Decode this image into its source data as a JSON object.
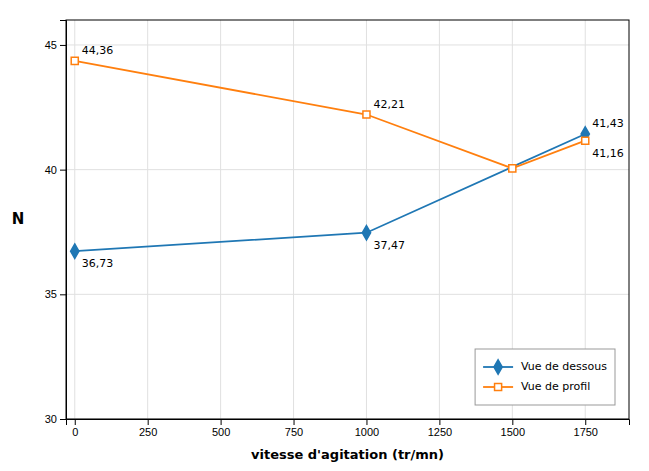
{
  "chart_data": {
    "type": "line",
    "x_label": "vitesse d'agitation (tr/mn)",
    "y_label": "N",
    "series": [
      {
        "name": "Vue de dessous",
        "x": [
          0,
          1000,
          1750
        ],
        "values": [
          36.73,
          37.47,
          41.43
        ],
        "marker": "diamond"
      },
      {
        "name": "Vue de profil",
        "x": [
          0,
          1000,
          1500,
          1750
        ],
        "values": [
          44.36,
          42.21,
          40.05,
          41.16
        ],
        "marker": "square"
      }
    ],
    "annotations": [
      {
        "text": "44,36",
        "x": 0,
        "y": 44.36
      },
      {
        "text": "36,73",
        "x": 0,
        "y": 36.73
      },
      {
        "text": "42,21",
        "x": 1000,
        "y": 42.21
      },
      {
        "text": "37,47",
        "x": 1000,
        "y": 37.47
      },
      {
        "text": "41,43",
        "x": 1750,
        "y": 41.43
      },
      {
        "text": "41,16",
        "x": 1750,
        "y": 41.16
      }
    ],
    "xlim": [
      -30,
      1900
    ],
    "ylim": [
      30,
      46
    ],
    "xticks": [
      0,
      250,
      500,
      750,
      1000,
      1250,
      1500,
      1750
    ],
    "yticks": [
      30,
      35,
      40,
      45
    ],
    "grid": true,
    "legend": "lower right"
  }
}
